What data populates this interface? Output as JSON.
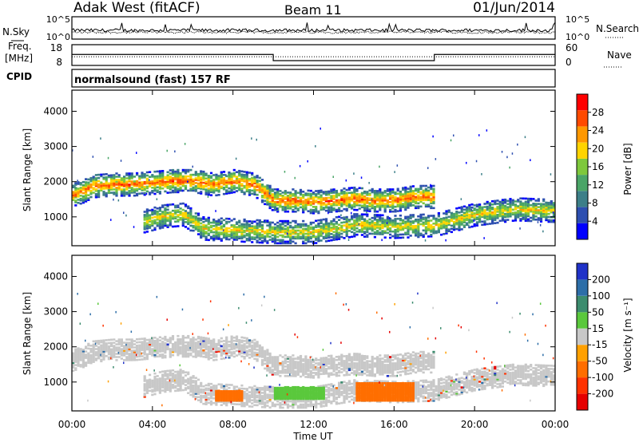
{
  "header": {
    "title": "Adak West (fitACF)",
    "beam": "Beam 11",
    "date": "01/Jun/2014"
  },
  "strips": {
    "nsky_label": "N.Sky",
    "nsearch_label": "N.Search",
    "freq_label_1": "Freq.",
    "freq_label_2": "[MHz]",
    "nave_label": "Nave",
    "cpid_label": "CPID",
    "noise_left_ticks": [
      "10^5",
      "10^0"
    ],
    "noise_right_ticks": [
      "10^5",
      "10^0"
    ],
    "freq_left_ticks": [
      "18",
      "8"
    ],
    "freq_right_ticks": [
      "60",
      "0"
    ],
    "cpid_text": "normalsound (fast) 157 RF"
  },
  "power_panel": {
    "ylabel": "Slant Range [km]",
    "yticks": [
      "1000",
      "2000",
      "3000",
      "4000"
    ],
    "colorbar_label": "Power [dB]",
    "colorbar_ticks": [
      "4",
      "8",
      "12",
      "16",
      "20",
      "24",
      "28"
    ],
    "colors": [
      "#0000ff",
      "#2d4fb0",
      "#3c7f88",
      "#4aa567",
      "#7ec83c",
      "#ffd400",
      "#ff9800",
      "#ff4a00",
      "#ff0000"
    ]
  },
  "velocity_panel": {
    "ylabel": "Slant Range [km]",
    "yticks": [
      "1000",
      "2000",
      "3000",
      "4000"
    ],
    "colorbar_label": "Velocity [m s⁻¹]",
    "colorbar_ticks": [
      "200",
      "100",
      "50",
      "15",
      "-15",
      "-50",
      "-100",
      "-200"
    ],
    "colors": [
      "#2032c8",
      "#2d6ea8",
      "#3c8c6e",
      "#5ac83c",
      "#c8c8c8",
      "#ffa000",
      "#ff6e00",
      "#ff3200",
      "#e60000"
    ]
  },
  "xaxis": {
    "label": "Time UT",
    "ticks": [
      "00:00",
      "04:00",
      "08:00",
      "12:00",
      "16:00",
      "20:00",
      "00:00"
    ]
  },
  "chart_data": {
    "type": "heatmap",
    "x_unit": "hours UT",
    "xlim": [
      0,
      24
    ],
    "ylim_km": [
      180,
      4600
    ],
    "frequency_MHz": [
      {
        "from": 0,
        "to": 10,
        "value": 13.3
      },
      {
        "from": 10,
        "to": 18,
        "value": 10.3
      },
      {
        "from": 18,
        "to": 24,
        "value": 13.3
      }
    ],
    "nave": [
      {
        "from": 0,
        "to": 24,
        "value": 25
      }
    ],
    "power_bands": [
      {
        "name": "upper",
        "points": [
          [
            0,
            1650
          ],
          [
            0.5,
            1750
          ],
          [
            1,
            1900
          ],
          [
            2,
            1950
          ],
          [
            3,
            1950
          ],
          [
            4,
            2000
          ],
          [
            5,
            2050
          ],
          [
            6,
            2050
          ],
          [
            7,
            1950
          ],
          [
            8,
            2050
          ],
          [
            9,
            1950
          ],
          [
            10,
            1500
          ],
          [
            11,
            1500
          ],
          [
            12,
            1450
          ],
          [
            13,
            1500
          ],
          [
            14,
            1550
          ],
          [
            15,
            1500
          ],
          [
            16,
            1500
          ],
          [
            17,
            1600
          ],
          [
            18,
            1600
          ]
        ],
        "power_dB": 26
      },
      {
        "name": "lower",
        "points": [
          [
            3.5,
            900
          ],
          [
            4.5,
            1050
          ],
          [
            5.5,
            1100
          ],
          [
            6.5,
            700
          ],
          [
            10,
            600
          ],
          [
            12,
            600
          ],
          [
            14,
            800
          ],
          [
            16,
            750
          ],
          [
            18,
            800
          ],
          [
            20,
            1100
          ],
          [
            22,
            1250
          ],
          [
            24,
            1200
          ]
        ],
        "power_dB": 20
      }
    ],
    "velocity_regions": [
      {
        "from": 7.0,
        "to": 8.5,
        "range_km": [
          500,
          800
        ],
        "velocity": -50
      },
      {
        "from": 10.0,
        "to": 12.5,
        "range_km": [
          550,
          900
        ],
        "velocity": 20
      },
      {
        "from": 14.0,
        "to": 17.0,
        "range_km": [
          500,
          1000
        ],
        "velocity": -60
      }
    ]
  }
}
